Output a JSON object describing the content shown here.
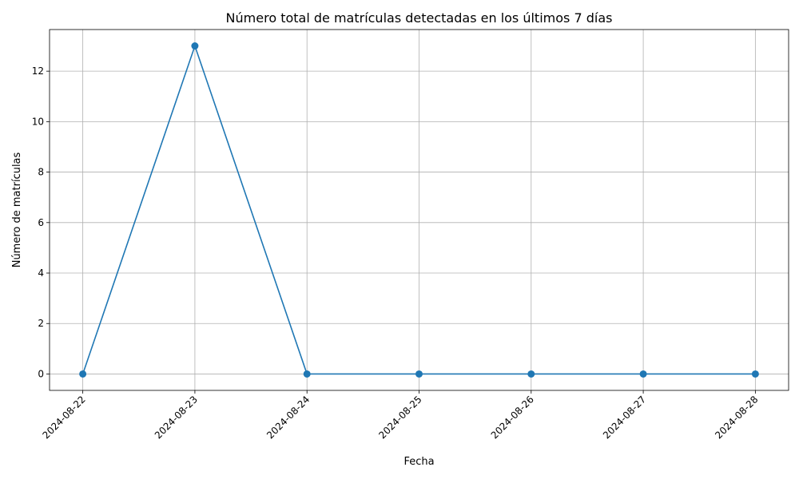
{
  "chart_data": {
    "type": "line",
    "title": "Número total de matrículas detectadas en los últimos 7 días",
    "xlabel": "Fecha",
    "ylabel": "Número de matrículas",
    "x": [
      "2024-08-22",
      "2024-08-23",
      "2024-08-24",
      "2024-08-25",
      "2024-08-26",
      "2024-08-27",
      "2024-08-28"
    ],
    "series": [
      {
        "values": [
          0,
          13,
          0,
          0,
          0,
          0,
          0
        ],
        "color": "#1f77b4",
        "marker": "circle"
      }
    ],
    "ylim": [
      -0.65,
      13.65
    ],
    "yticks": [
      0,
      2,
      4,
      6,
      8,
      10,
      12
    ],
    "grid": true,
    "x_tick_rotation_deg": 45
  }
}
